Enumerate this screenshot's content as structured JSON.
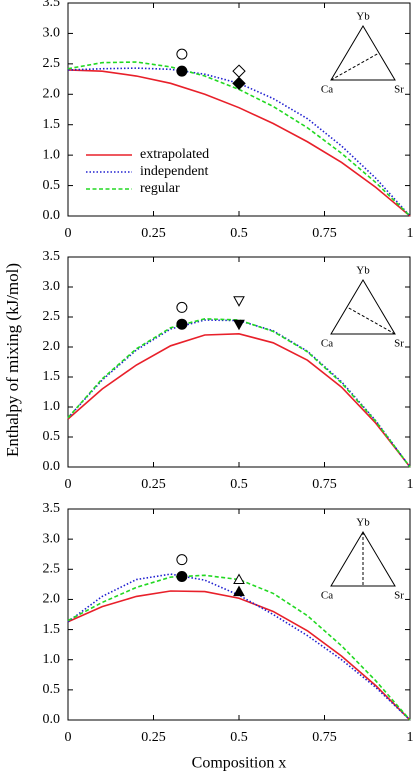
{
  "y_label": "Enthalpy of mixing (kJ/mol)",
  "x_label": "Composition x",
  "chart_data": [
    {
      "type": "line",
      "inset": {
        "top": "Yb",
        "left": "Ca",
        "right": "Sr"
      },
      "legend": "left",
      "x": [
        0,
        0.1,
        0.2,
        0.3,
        0.4,
        0.5,
        0.6,
        0.7,
        0.8,
        0.9,
        1
      ],
      "series": [
        {
          "name": "extrapolated",
          "color": "#e8202a",
          "style": "solid",
          "values": [
            2.4,
            2.38,
            2.3,
            2.18,
            2.0,
            1.78,
            1.52,
            1.22,
            0.88,
            0.47,
            0
          ]
        },
        {
          "name": "independent",
          "color": "#2020d0",
          "style": "dotted",
          "values": [
            2.4,
            2.42,
            2.43,
            2.41,
            2.33,
            2.18,
            1.93,
            1.6,
            1.15,
            0.62,
            0
          ]
        },
        {
          "name": "regular",
          "color": "#22d822",
          "style": "dashed",
          "values": [
            2.42,
            2.52,
            2.53,
            2.45,
            2.3,
            2.08,
            1.8,
            1.45,
            1.03,
            0.55,
            0
          ]
        }
      ],
      "points": [
        {
          "x": 0.333,
          "y": 2.66,
          "marker": "circle",
          "filled": false
        },
        {
          "x": 0.333,
          "y": 2.38,
          "marker": "circle",
          "filled": true
        },
        {
          "x": 0.5,
          "y": 2.38,
          "marker": "diamond",
          "filled": false
        },
        {
          "x": 0.5,
          "y": 2.18,
          "marker": "diamond",
          "filled": true
        }
      ],
      "xlim": [
        0,
        1
      ],
      "xticks": [
        0,
        0.25,
        0.5,
        0.75,
        1
      ],
      "ylim": [
        0,
        3.5
      ],
      "yticks": [
        {
          "value": 0,
          "label": "0.0"
        },
        0.5,
        {
          "value": 1,
          "label": "1.0"
        },
        1.5,
        {
          "value": 2,
          "label": "2.0"
        },
        2.5,
        {
          "value": 3,
          "label": "3.0"
        },
        3.5
      ]
    },
    {
      "type": "line",
      "inset": {
        "top": "Yb",
        "left": "Ca",
        "right": "Sr"
      },
      "x": [
        0,
        0.1,
        0.2,
        0.3,
        0.4,
        0.5,
        0.6,
        0.7,
        0.8,
        0.9,
        1
      ],
      "series": [
        {
          "color": "#e8202a",
          "style": "solid",
          "values": [
            0.8,
            1.3,
            1.7,
            2.02,
            2.2,
            2.22,
            2.07,
            1.78,
            1.33,
            0.73,
            0
          ]
        },
        {
          "color": "#2020d0",
          "style": "dotted",
          "values": [
            0.82,
            1.45,
            1.95,
            2.3,
            2.45,
            2.44,
            2.27,
            1.93,
            1.42,
            0.77,
            0
          ]
        },
        {
          "color": "#22d822",
          "style": "dashed",
          "values": [
            0.82,
            1.47,
            1.97,
            2.32,
            2.47,
            2.45,
            2.26,
            1.92,
            1.4,
            0.76,
            0
          ]
        }
      ],
      "points": [
        {
          "x": 0.333,
          "y": 2.66,
          "marker": "circle",
          "filled": false
        },
        {
          "x": 0.333,
          "y": 2.38,
          "marker": "circle",
          "filled": true
        },
        {
          "x": 0.5,
          "y": 2.77,
          "marker": "triangle-down",
          "filled": false
        },
        {
          "x": 0.5,
          "y": 2.38,
          "marker": "triangle-down",
          "filled": true
        }
      ],
      "xlim": [
        0,
        1
      ],
      "xticks": [
        0,
        0.25,
        0.5,
        0.75,
        1
      ],
      "ylim": [
        0,
        3.5
      ],
      "yticks": [
        {
          "value": 0,
          "label": "0.0"
        },
        0.5,
        {
          "value": 1,
          "label": "1.0"
        },
        1.5,
        {
          "value": 2,
          "label": "2.0"
        },
        2.5,
        {
          "value": 3,
          "label": "3.0"
        },
        3.5
      ]
    },
    {
      "type": "line",
      "inset": {
        "top": "Yb",
        "left": "Ca",
        "right": "Sr"
      },
      "x": [
        0,
        0.1,
        0.2,
        0.3,
        0.4,
        0.5,
        0.6,
        0.7,
        0.8,
        0.9,
        1
      ],
      "series": [
        {
          "color": "#e8202a",
          "style": "solid",
          "values": [
            1.63,
            1.88,
            2.05,
            2.14,
            2.13,
            2.02,
            1.8,
            1.48,
            1.06,
            0.57,
            0
          ]
        },
        {
          "color": "#2020d0",
          "style": "dotted",
          "values": [
            1.63,
            2.05,
            2.33,
            2.42,
            2.32,
            2.07,
            1.75,
            1.4,
            1.0,
            0.54,
            0
          ]
        },
        {
          "color": "#22d822",
          "style": "dashed",
          "values": [
            1.65,
            1.95,
            2.2,
            2.37,
            2.4,
            2.33,
            2.1,
            1.73,
            1.23,
            0.65,
            0
          ]
        }
      ],
      "points": [
        {
          "x": 0.333,
          "y": 2.66,
          "marker": "circle",
          "filled": false
        },
        {
          "x": 0.333,
          "y": 2.38,
          "marker": "circle",
          "filled": true
        },
        {
          "x": 0.5,
          "y": 2.33,
          "marker": "triangle-up",
          "filled": false
        },
        {
          "x": 0.5,
          "y": 2.13,
          "marker": "triangle-up",
          "filled": true
        }
      ],
      "xlim": [
        0,
        1
      ],
      "xticks": [
        0,
        0.25,
        0.5,
        0.75,
        1
      ],
      "ylim": [
        0,
        3.5
      ],
      "yticks": [
        {
          "value": 0,
          "label": "0.0"
        },
        0.5,
        {
          "value": 1,
          "label": "1.0"
        },
        1.5,
        {
          "value": 2,
          "label": "2.0"
        },
        2.5,
        {
          "value": 3,
          "label": "3.0"
        },
        3.5
      ]
    }
  ]
}
